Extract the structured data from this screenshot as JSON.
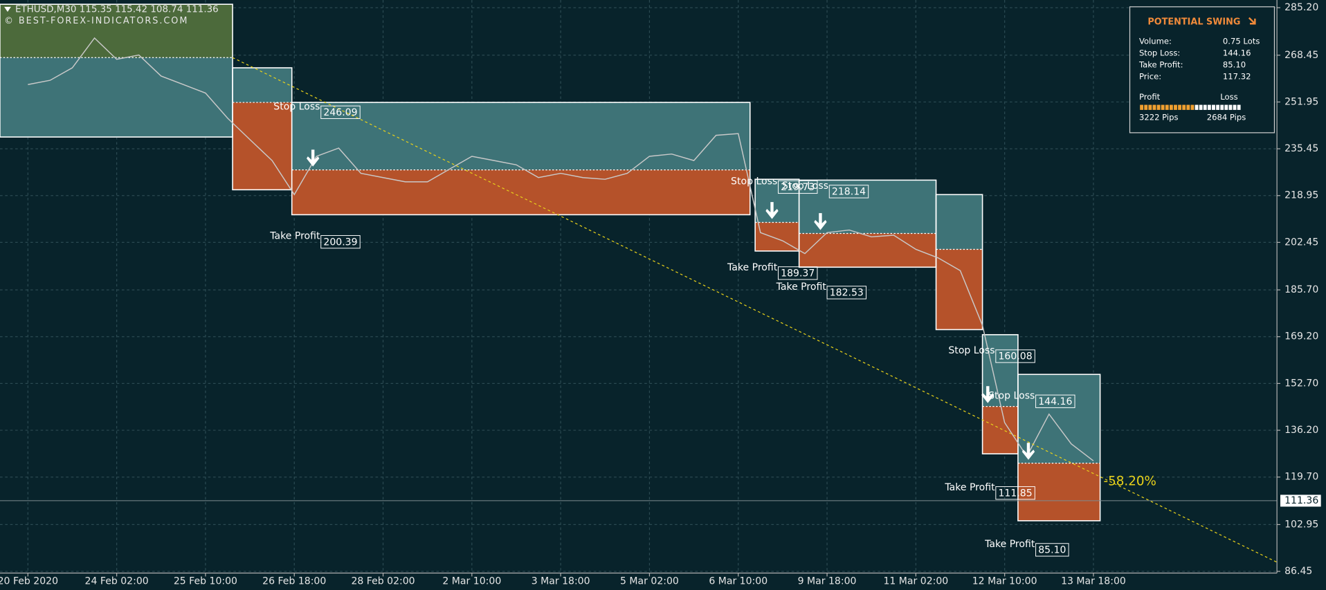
{
  "chart_data": {
    "type": "line",
    "symbol": "ETHUSD,M30",
    "ohlc": [
      115.35,
      115.42,
      108.74,
      111.36
    ],
    "watermark": "© BEST-FOREX-INDICATORS.COM",
    "categories": [
      "20 Feb 2020",
      null,
      null,
      null,
      "24 Feb 02:00",
      null,
      null,
      null,
      "25 Feb 10:00",
      null,
      null,
      null,
      "26 Feb 18:00",
      null,
      null,
      null,
      "28 Feb 02:00",
      null,
      null,
      null,
      "2 Mar 10:00",
      null,
      null,
      null,
      "3 Mar 18:00",
      null,
      null,
      null,
      "5 Mar 02:00",
      null,
      null,
      null,
      "6 Mar 10:00",
      null,
      null,
      null,
      "9 Mar 18:00",
      null,
      null,
      null,
      "11 Mar 02:00",
      null,
      null,
      null,
      "12 Mar 10:00",
      null,
      null,
      null,
      "13 Mar 18:00"
    ],
    "series": [
      {
        "color": "#c9c9c9",
        "values": [
          258.1,
          259.6,
          264.0,
          274.5,
          267.0,
          268.5,
          261.1,
          258.1,
          255.1,
          246.2,
          238.7,
          231.3,
          219.3,
          232.8,
          235.7,
          226.8,
          225.3,
          223.8,
          223.8,
          228.3,
          232.8,
          231.3,
          229.8,
          225.3,
          226.8,
          225.3,
          224.7,
          226.8,
          232.8,
          233.6,
          231.3,
          240.2,
          240.8,
          205.9,
          203.0,
          198.5,
          205.9,
          206.8,
          204.4,
          205.0,
          200.0,
          197.0,
          192.5,
          173.2,
          138.9,
          127.0,
          141.9,
          131.4,
          125.4
        ]
      }
    ],
    "ylim": [
      85.85,
      287.9
    ],
    "yticks": [
      {
        "value": 285.2,
        "label": "285.20"
      },
      {
        "value": 268.45,
        "label": "268.45"
      },
      {
        "value": 251.95,
        "label": "251.95"
      },
      {
        "value": 235.45,
        "label": "235.45"
      },
      {
        "value": 218.95,
        "label": "218.95"
      },
      {
        "value": 202.45,
        "label": "202.45"
      },
      {
        "value": 185.7,
        "label": "185.70"
      },
      {
        "value": 169.2,
        "label": "169.20"
      },
      {
        "value": 152.7,
        "label": "152.70"
      },
      {
        "value": 136.2,
        "label": "136.20"
      },
      {
        "value": 119.7,
        "label": "119.70"
      },
      {
        "value": 102.95,
        "label": "102.95"
      },
      {
        "value": 86.45,
        "label": "86.45"
      }
    ],
    "grid": true,
    "current_price": 111.36,
    "zones": [
      {
        "start": -1.26,
        "end": 9.22,
        "upper": 286.4,
        "entry": 267.6,
        "lower": 239.6,
        "upper_color": "#4c6a3b",
        "lower_color": "#3e7377"
      },
      {
        "start": 9.22,
        "end": 11.89,
        "upper": 264.0,
        "entry": 251.8,
        "lower": 221.0,
        "upper_color": "#3e7377",
        "lower_color": "#b5522a"
      },
      {
        "start": 11.89,
        "end": 32.53,
        "upper": 251.8,
        "entry": 228.0,
        "lower": 212.2,
        "upper_color": "#3e7377",
        "lower_color": "#b5522a"
      },
      {
        "start": 32.76,
        "end": 34.74,
        "upper": 224.7,
        "entry": 209.5,
        "lower": 199.4,
        "upper_color": "#3e7377",
        "lower_color": "#b5522a"
      },
      {
        "start": 34.74,
        "end": 40.91,
        "upper": 224.4,
        "entry": 205.6,
        "lower": 193.7,
        "upper_color": "#3e7377",
        "lower_color": "#b5522a"
      },
      {
        "start": 40.91,
        "end": 43.0,
        "upper": 219.3,
        "entry": 200.0,
        "lower": 171.7,
        "upper_color": "#3e7377",
        "lower_color": "#b5522a"
      },
      {
        "start": 43.0,
        "end": 44.6,
        "upper": 169.9,
        "entry": 144.6,
        "lower": 127.9,
        "upper_color": "#3e7377",
        "lower_color": "#b5522a"
      },
      {
        "start": 44.6,
        "end": 48.3,
        "upper": 155.9,
        "entry": 124.6,
        "lower": 104.3,
        "upper_color": "#3e7377",
        "lower_color": "#b5522a"
      }
    ],
    "levels": [
      {
        "text": "Stop Loss",
        "x": 13.2,
        "value": 246.09
      },
      {
        "text": "Take Profit",
        "x": 13.2,
        "value": 200.39
      },
      {
        "text": "Stop Loss",
        "x": 33.8,
        "value": 219.73
      },
      {
        "text": "Stop Loss",
        "x": 36.1,
        "value": 218.14
      },
      {
        "text": "Take Profit",
        "x": 33.8,
        "value": 189.37
      },
      {
        "text": "Take Profit",
        "x": 36.0,
        "value": 182.53
      },
      {
        "text": "Stop Loss",
        "x": 43.6,
        "value": 160.08
      },
      {
        "text": "Stop Loss",
        "x": 45.4,
        "value": 144.16
      },
      {
        "text": "Take Profit",
        "x": 43.6,
        "value": 111.85
      },
      {
        "text": "Take Profit",
        "x": 45.4,
        "value": {
          "value": 85.1,
          "label": "85.10"
        }
      }
    ],
    "signals": [
      {
        "x": 12.84,
        "price": 228.0
      },
      {
        "x": 33.52,
        "price": 209.5
      },
      {
        "x": 35.7,
        "price": 205.6
      },
      {
        "x": 43.24,
        "price": 144.6
      },
      {
        "x": 45.07,
        "price": 124.6
      }
    ],
    "trendline": {
      "x": [
        9.22,
        56.5
      ],
      "values": [
        267.6,
        88.8
      ],
      "color": "#e8d11a",
      "label": "-58.20%"
    },
    "panel": {
      "title": "POTENTIAL SWING",
      "rows": [
        {
          "label": "Volume:",
          "value": "0.75 Lots"
        },
        {
          "label": "Stop Loss:",
          "value": 144.16
        },
        {
          "label": "Take Profit:",
          "value": {
            "value": 85.1,
            "label": "85.10"
          }
        },
        {
          "label": "Price:",
          "value": 117.32
        }
      ],
      "profit_text": "Profit",
      "loss_text": "Loss",
      "profit": {
        "value": 3222,
        "label": "3222 Pips"
      },
      "loss": {
        "value": 2684,
        "label": "2684 Pips"
      }
    }
  }
}
